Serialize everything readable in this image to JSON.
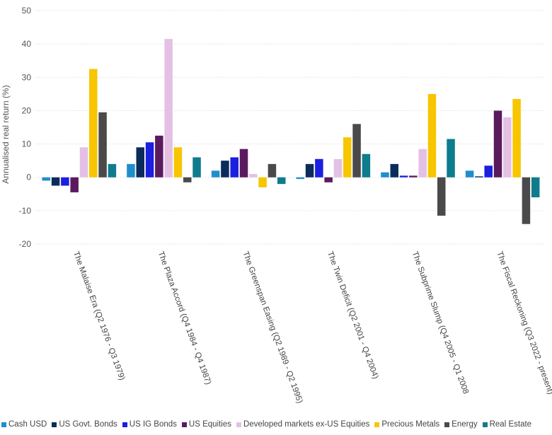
{
  "chart_data": {
    "type": "bar",
    "title": "",
    "xlabel": "",
    "ylabel": "Annualised real return (%)",
    "ylim": [
      -20,
      50
    ],
    "yticks": [
      -20,
      -10,
      0,
      10,
      20,
      30,
      40,
      50
    ],
    "grid": true,
    "legend_position": "bottom",
    "categories": [
      "The Malaise Era (Q2 1976 - Q3 1979)",
      "The Plaza Accord (Q4 1984 - Q4 1987)",
      "The Greenspan Easing (Q2 1989 - Q2 1995)",
      "The Twin Deficit (Q2 2001 - Q4 2004)",
      "The Subprime Slump (Q4 2005 - Q1 2008",
      "The Fiscal Reckoning (Q3 2022 - present)"
    ],
    "series": [
      {
        "name": "Cash USD",
        "color": "#1f8ecd",
        "values": [
          -1,
          4,
          2,
          -0.5,
          1.5,
          2
        ]
      },
      {
        "name": "US Govt. Bonds",
        "color": "#0b2c5a",
        "values": [
          -2.5,
          9,
          5,
          4,
          4,
          0.3
        ]
      },
      {
        "name": "US IG Bonds",
        "color": "#1a1fe0",
        "values": [
          -2.5,
          10.5,
          6,
          5.5,
          0.5,
          3.5
        ]
      },
      {
        "name": "US Equities",
        "color": "#5c1a5e",
        "values": [
          -4.5,
          12.5,
          8.5,
          -1.5,
          0.5,
          20
        ]
      },
      {
        "name": "Developed markets ex-US Equities",
        "color": "#e4c1e4",
        "values": [
          9,
          41.5,
          1,
          5.5,
          8.5,
          18
        ]
      },
      {
        "name": "Precious Metals",
        "color": "#f7c600",
        "values": [
          32.5,
          9,
          -3,
          12,
          25,
          23.5
        ]
      },
      {
        "name": "Energy",
        "color": "#4a4a4a",
        "values": [
          19.5,
          -1.5,
          4,
          16,
          -11.5,
          -14
        ]
      },
      {
        "name": "Real Estate",
        "color": "#0e7c8c",
        "values": [
          4,
          6,
          -2,
          7,
          11.5,
          -6
        ]
      }
    ]
  }
}
